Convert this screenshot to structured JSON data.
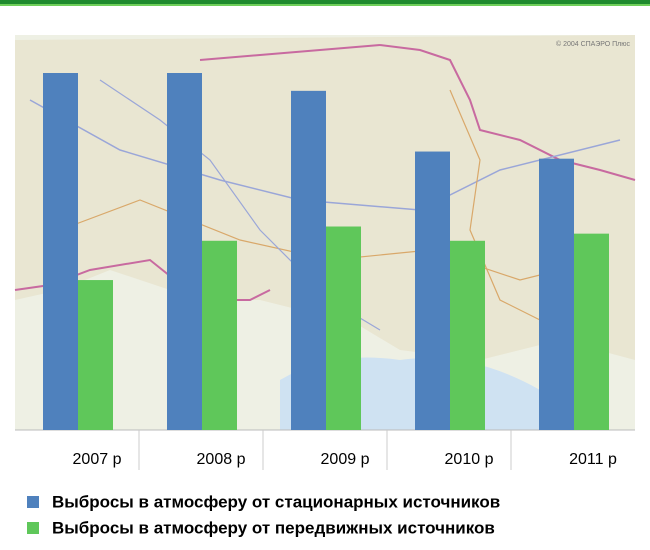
{
  "chart_data": {
    "type": "bar",
    "categories": [
      "2007 р",
      "2008 р",
      "2009 р",
      "2010 р",
      "2011 р"
    ],
    "series": [
      {
        "name": "Выбросы в атмосферу от стационарных источников",
        "color": "#4f81bd",
        "values": [
          100,
          100,
          95,
          78,
          76
        ]
      },
      {
        "name": "Выбросы в атмосферу от передвижных источников",
        "color": "#5fc75a",
        "values": [
          42,
          53,
          57,
          53,
          55
        ]
      }
    ],
    "map_credit": "© 2004 СПАЭРО Плюс"
  }
}
